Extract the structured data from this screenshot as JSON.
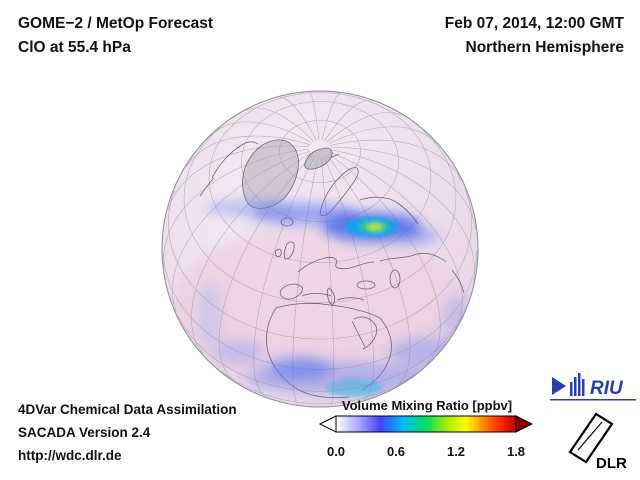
{
  "header": {
    "product_line1": "GOME−2 / MetOp Forecast",
    "product_line2": "ClO at 55.4 hPa",
    "datetime": "Feb 07, 2014, 12:00 GMT",
    "region": "Northern Hemisphere"
  },
  "globe": {
    "projection": "orthographic-northern-hemisphere",
    "tint_color": "#efe2ee",
    "plume_colors": [
      "#2f55ea",
      "#00aaee",
      "#2fd268",
      "#c4ea2e"
    ]
  },
  "colorbar": {
    "title": "Volume Mixing Ratio [ppbv]",
    "units": "ppbv",
    "range_min": 0.0,
    "range_max": 1.8,
    "ticks": [
      "0.0",
      "0.6",
      "1.2",
      "1.8"
    ],
    "gradient": [
      "#ffffff",
      "#aaaaff",
      "#4444ff",
      "#00bbff",
      "#00dd66",
      "#aaee00",
      "#ffff00",
      "#ff8800",
      "#ff2200",
      "#bb0000"
    ],
    "overflow_color": "#8b0000"
  },
  "footer": {
    "line1": "4DVar Chemical Data Assimilation",
    "line2": "SACADA Version 2.4",
    "line3": "http://wdc.dlr.de"
  },
  "logos": {
    "riu_label": "RIU",
    "dlr_label": "DLR",
    "riu_color": "#2a3fae",
    "dlr_color": "#000000"
  }
}
